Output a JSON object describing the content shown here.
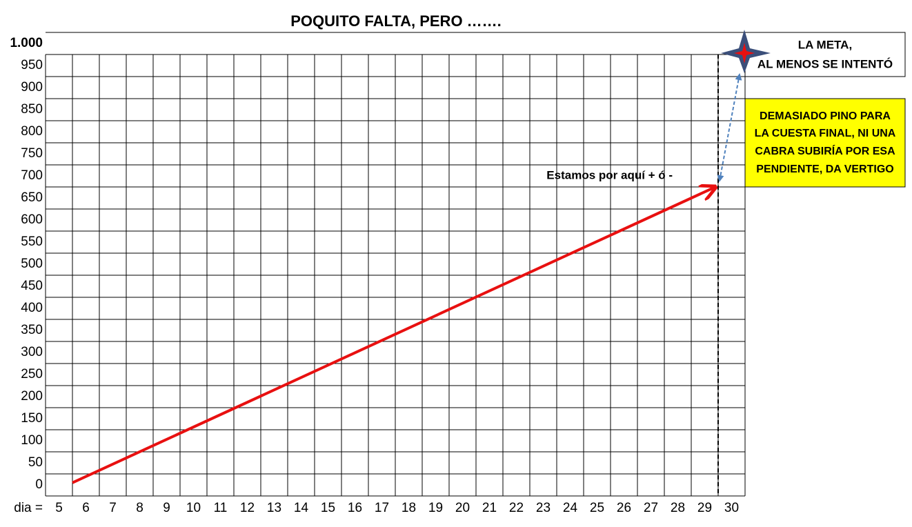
{
  "chart_data": {
    "type": "line",
    "title": "POQUITO FALTA, PERO …….",
    "x_label": "dia =",
    "x": [
      5.5,
      29.4
    ],
    "series": [
      {
        "name": "Estamos por aquí + ó -",
        "color": "#e81010",
        "values": [
          5,
          675
        ]
      }
    ],
    "xlim": [
      5,
      30
    ],
    "xticks": [
      5,
      6,
      7,
      8,
      9,
      10,
      11,
      12,
      13,
      14,
      15,
      16,
      17,
      18,
      19,
      20,
      21,
      22,
      23,
      24,
      25,
      26,
      27,
      28,
      29,
      30
    ],
    "ylim": [
      0,
      1000
    ],
    "yticks": [
      {
        "value": 1000,
        "label": "1.000"
      },
      950,
      900,
      850,
      800,
      750,
      700,
      650,
      600,
      550,
      500,
      450,
      400,
      350,
      300,
      250,
      200,
      150,
      100,
      50,
      0
    ],
    "grid": true,
    "vline": 29.5,
    "goal_text": [
      "LA META,",
      "AL MENOS SE INTENTÓ"
    ],
    "note_text": [
      "DEMASIADO PINO PARA",
      "LA CUESTA FINAL, NI UNA",
      "CABRA SUBIRÍA POR ESA",
      "PENDIENTE, DA VERTIGO"
    ]
  }
}
